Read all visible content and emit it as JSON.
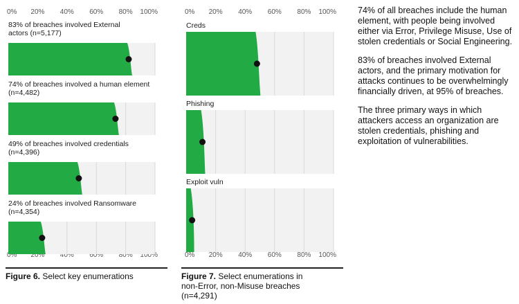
{
  "chart_data": [
    {
      "type": "bar",
      "orientation": "horizontal",
      "xlim": [
        0,
        100
      ],
      "x_ticks": [
        "0%",
        "20%",
        "40%",
        "60%",
        "80%",
        "100%"
      ],
      "rows": [
        {
          "title_lines": [
            "83% of breaches involved External",
            "actors (n=5,177)"
          ],
          "value": 83
        },
        {
          "title_lines": [
            "74% of breaches involved a human element",
            "(n=4,482)"
          ],
          "value": 74
        },
        {
          "title_lines": [
            "49% of breaches involved credentials",
            "(n=4,396)"
          ],
          "value": 49
        },
        {
          "title_lines": [
            "24% of breaches involved Ransomware",
            "(n=4,354)"
          ],
          "value": 24
        }
      ],
      "caption_bold": "Figure 6.",
      "caption_lines": [
        "Select key enumerations"
      ],
      "bar_color": "#22aa44",
      "track_color": "#f2f2f2"
    },
    {
      "type": "bar",
      "orientation": "horizontal",
      "xlim": [
        0,
        100
      ],
      "x_ticks": [
        "0%",
        "20%",
        "40%",
        "60%",
        "80%",
        "100%"
      ],
      "rows": [
        {
          "title_lines": [
            "Creds"
          ],
          "value": 49
        },
        {
          "title_lines": [
            "Phishing"
          ],
          "value": 12
        },
        {
          "title_lines": [
            "Exploit vuln"
          ],
          "value": 5
        }
      ],
      "caption_bold": "Figure 7.",
      "caption_lines": [
        "Select enumerations in",
        "non-Error, non-Misuse breaches",
        "(n=4,291)"
      ],
      "bar_color": "#22aa44",
      "track_color": "#f2f2f2"
    }
  ],
  "notes": [
    "74% of all breaches include the human element, with people being involved either via Error, Privilege Misuse, Use of stolen credentials or Social Engineering.",
    "83% of breaches involved External actors, and the primary motivation for attacks continues to be overwhelmingly financially driven, at 95% of breaches.",
    "The three primary ways in which attackers access an organization are stolen credentials, phishing and exploitation of vulnerabilities."
  ]
}
